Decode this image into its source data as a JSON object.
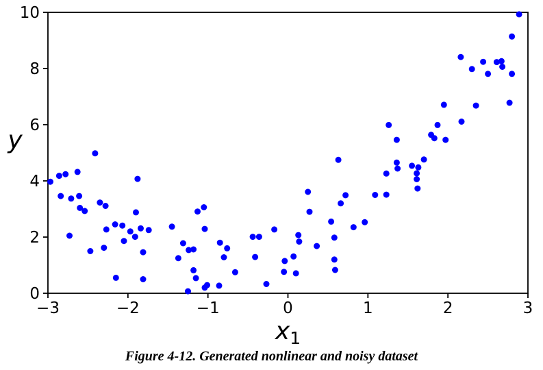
{
  "figure": {
    "caption": "Figure 4-12. Generated nonlinear and noisy dataset"
  },
  "chart_data": {
    "type": "scatter",
    "title": "",
    "xlabel": "x",
    "xlabel_subscript": "1",
    "ylabel": "y",
    "xlim": [
      -3,
      3
    ],
    "ylim": [
      0,
      10
    ],
    "xticks": [
      -3,
      -2,
      -1,
      0,
      1,
      2,
      3
    ],
    "yticks": [
      0,
      2,
      4,
      6,
      8,
      10
    ],
    "grid": false,
    "legend": "none",
    "marker": "dot",
    "marker_color": "#0000ff",
    "marker_radius_px": 4.5,
    "points": [
      [
        -2.97,
        3.97
      ],
      [
        -2.86,
        4.18
      ],
      [
        -2.78,
        4.24
      ],
      [
        -2.84,
        3.46
      ],
      [
        -2.73,
        2.05
      ],
      [
        -2.71,
        3.37
      ],
      [
        -2.63,
        4.32
      ],
      [
        -2.61,
        3.46
      ],
      [
        -2.6,
        3.04
      ],
      [
        -2.54,
        2.93
      ],
      [
        -2.47,
        1.5
      ],
      [
        -2.41,
        4.98
      ],
      [
        -2.35,
        3.23
      ],
      [
        -2.3,
        1.62
      ],
      [
        -2.28,
        3.11
      ],
      [
        -2.27,
        2.27
      ],
      [
        -2.16,
        2.45
      ],
      [
        -2.15,
        0.55
      ],
      [
        -2.07,
        2.41
      ],
      [
        -2.05,
        1.86
      ],
      [
        -1.97,
        2.2
      ],
      [
        -1.91,
        2.01
      ],
      [
        -1.9,
        2.88
      ],
      [
        -1.88,
        4.07
      ],
      [
        -1.84,
        2.31
      ],
      [
        -1.81,
        1.46
      ],
      [
        -1.81,
        0.5
      ],
      [
        -1.74,
        2.25
      ],
      [
        -1.45,
        2.37
      ],
      [
        -1.37,
        1.25
      ],
      [
        -1.31,
        1.78
      ],
      [
        -1.25,
        0.07
      ],
      [
        -1.24,
        1.54
      ],
      [
        -1.18,
        1.56
      ],
      [
        -1.18,
        0.82
      ],
      [
        -1.15,
        0.54
      ],
      [
        -1.13,
        2.91
      ],
      [
        -1.05,
        3.06
      ],
      [
        -1.04,
        0.2
      ],
      [
        -1.04,
        2.29
      ],
      [
        -1.01,
        0.29
      ],
      [
        -0.86,
        0.27
      ],
      [
        -0.85,
        1.8
      ],
      [
        -0.8,
        1.28
      ],
      [
        -0.76,
        1.6
      ],
      [
        -0.66,
        0.75
      ],
      [
        -0.44,
        2.01
      ],
      [
        -0.41,
        1.29
      ],
      [
        -0.36,
        2.01
      ],
      [
        -0.27,
        0.33
      ],
      [
        -0.17,
        2.27
      ],
      [
        -0.05,
        0.76
      ],
      [
        -0.04,
        1.15
      ],
      [
        0.07,
        1.31
      ],
      [
        0.1,
        0.71
      ],
      [
        0.13,
        2.07
      ],
      [
        0.14,
        1.84
      ],
      [
        0.25,
        3.61
      ],
      [
        0.27,
        2.9
      ],
      [
        0.36,
        1.68
      ],
      [
        0.54,
        2.55
      ],
      [
        0.58,
        1.98
      ],
      [
        0.58,
        1.2
      ],
      [
        0.59,
        0.83
      ],
      [
        0.63,
        4.75
      ],
      [
        0.66,
        3.2
      ],
      [
        0.72,
        3.49
      ],
      [
        0.82,
        2.35
      ],
      [
        0.96,
        2.53
      ],
      [
        1.09,
        3.5
      ],
      [
        1.23,
        4.26
      ],
      [
        1.23,
        3.51
      ],
      [
        1.26,
        5.99
      ],
      [
        1.36,
        5.46
      ],
      [
        1.36,
        4.65
      ],
      [
        1.37,
        4.44
      ],
      [
        1.55,
        4.54
      ],
      [
        1.61,
        4.27
      ],
      [
        1.61,
        4.06
      ],
      [
        1.62,
        3.73
      ],
      [
        1.63,
        4.48
      ],
      [
        1.7,
        4.76
      ],
      [
        1.79,
        5.64
      ],
      [
        1.83,
        5.52
      ],
      [
        1.87,
        5.99
      ],
      [
        1.95,
        6.71
      ],
      [
        1.97,
        5.46
      ],
      [
        2.16,
        8.41
      ],
      [
        2.17,
        6.11
      ],
      [
        2.3,
        7.98
      ],
      [
        2.35,
        6.68
      ],
      [
        2.44,
        8.24
      ],
      [
        2.5,
        7.81
      ],
      [
        2.61,
        8.23
      ],
      [
        2.67,
        8.26
      ],
      [
        2.68,
        8.06
      ],
      [
        2.77,
        6.78
      ],
      [
        2.8,
        9.14
      ],
      [
        2.8,
        7.81
      ],
      [
        2.89,
        9.93
      ]
    ],
    "axis_color": "#000000",
    "background_color": "#ffffff"
  }
}
